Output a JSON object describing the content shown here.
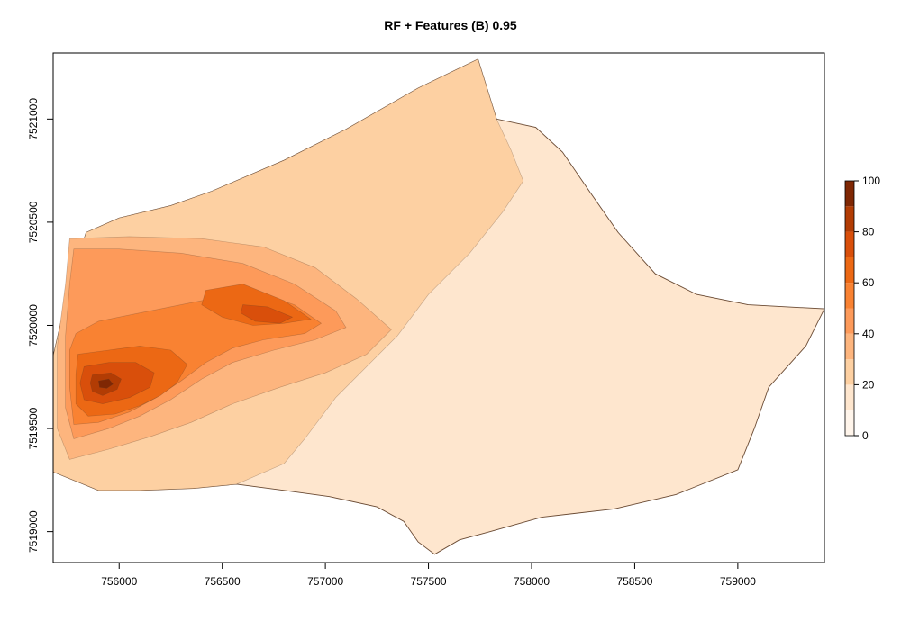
{
  "chart_data": {
    "type": "heatmap",
    "title": "RF + Features (B) 0.95",
    "xlabel": "",
    "ylabel": "",
    "xlim": [
      755680,
      759420
    ],
    "ylim": [
      7518850,
      7521320
    ],
    "x_ticks": [
      756000,
      756500,
      757000,
      757500,
      758000,
      758500,
      759000
    ],
    "y_ticks": [
      7519000,
      7519500,
      7520000,
      7520500,
      7521000
    ],
    "grid": false,
    "legend_position": "right",
    "colorbar": {
      "min": 0,
      "max": 100,
      "ticks": [
        0,
        20,
        40,
        60,
        80,
        100
      ],
      "levels": [
        {
          "from": 0,
          "to": 10,
          "color": "#fff5eb"
        },
        {
          "from": 10,
          "to": 20,
          "color": "#fee6ce"
        },
        {
          "from": 20,
          "to": 30,
          "color": "#fdd0a2"
        },
        {
          "from": 30,
          "to": 40,
          "color": "#fdb57e"
        },
        {
          "from": 40,
          "to": 50,
          "color": "#fd9a5a"
        },
        {
          "from": 50,
          "to": 60,
          "color": "#f98232"
        },
        {
          "from": 60,
          "to": 70,
          "color": "#ec6814"
        },
        {
          "from": 70,
          "to": 80,
          "color": "#d94f0b"
        },
        {
          "from": 80,
          "to": 90,
          "color": "#b23c04"
        },
        {
          "from": 90,
          "to": 100,
          "color": "#7f2704"
        }
      ]
    },
    "regions": [
      {
        "level": 10,
        "points": [
          [
            757740,
            7521290
          ],
          [
            757830,
            7521000
          ],
          [
            758020,
            7520960
          ],
          [
            758150,
            7520840
          ],
          [
            758280,
            7520650
          ],
          [
            758420,
            7520450
          ],
          [
            758600,
            7520250
          ],
          [
            758800,
            7520150
          ],
          [
            759050,
            7520100
          ],
          [
            759420,
            7520080
          ],
          [
            759330,
            7519900
          ],
          [
            759150,
            7519700
          ],
          [
            759080,
            7519500
          ],
          [
            759000,
            7519300
          ],
          [
            758700,
            7519180
          ],
          [
            758400,
            7519110
          ],
          [
            758050,
            7519070
          ],
          [
            757800,
            7519000
          ],
          [
            757650,
            7518960
          ],
          [
            757530,
            7518890
          ],
          [
            757450,
            7518950
          ],
          [
            757380,
            7519050
          ],
          [
            757250,
            7519120
          ],
          [
            757020,
            7519170
          ],
          [
            756800,
            7519200
          ],
          [
            756570,
            7519230
          ],
          [
            756360,
            7519210
          ],
          [
            756100,
            7519200
          ],
          [
            755900,
            7519200
          ],
          [
            755680,
            7519290
          ],
          [
            755680,
            7519850
          ],
          [
            755760,
            7520200
          ],
          [
            755840,
            7520450
          ],
          [
            756000,
            7520520
          ],
          [
            756250,
            7520580
          ],
          [
            756450,
            7520650
          ],
          [
            756800,
            7520800
          ],
          [
            757100,
            7520950
          ],
          [
            757450,
            7521150
          ],
          [
            757740,
            7521290
          ]
        ]
      },
      {
        "level": 20,
        "points": [
          [
            757740,
            7521290
          ],
          [
            757830,
            7521000
          ],
          [
            757900,
            7520850
          ],
          [
            757960,
            7520700
          ],
          [
            757860,
            7520550
          ],
          [
            757700,
            7520350
          ],
          [
            757500,
            7520150
          ],
          [
            757350,
            7519950
          ],
          [
            757200,
            7519800
          ],
          [
            757050,
            7519650
          ],
          [
            756900,
            7519450
          ],
          [
            756800,
            7519330
          ],
          [
            756570,
            7519230
          ],
          [
            756360,
            7519210
          ],
          [
            756100,
            7519200
          ],
          [
            755900,
            7519200
          ],
          [
            755680,
            7519290
          ],
          [
            755680,
            7519850
          ],
          [
            755760,
            7520200
          ],
          [
            755840,
            7520450
          ],
          [
            756000,
            7520520
          ],
          [
            756250,
            7520580
          ],
          [
            756450,
            7520650
          ],
          [
            756800,
            7520800
          ],
          [
            757100,
            7520950
          ],
          [
            757450,
            7521150
          ],
          [
            757740,
            7521290
          ]
        ]
      },
      {
        "level": 30,
        "points": [
          [
            755760,
            7520420
          ],
          [
            756050,
            7520430
          ],
          [
            756400,
            7520420
          ],
          [
            756700,
            7520380
          ],
          [
            756950,
            7520280
          ],
          [
            757150,
            7520130
          ],
          [
            757320,
            7519980
          ],
          [
            757200,
            7519860
          ],
          [
            757000,
            7519770
          ],
          [
            756780,
            7519700
          ],
          [
            756550,
            7519620
          ],
          [
            756350,
            7519530
          ],
          [
            756150,
            7519460
          ],
          [
            755950,
            7519400
          ],
          [
            755760,
            7519350
          ],
          [
            755700,
            7519500
          ],
          [
            755700,
            7519900
          ],
          [
            755740,
            7520200
          ]
        ]
      },
      {
        "level": 40,
        "points": [
          [
            755780,
            7520370
          ],
          [
            756000,
            7520370
          ],
          [
            756300,
            7520350
          ],
          [
            756600,
            7520300
          ],
          [
            756850,
            7520200
          ],
          [
            757050,
            7520070
          ],
          [
            757100,
            7519990
          ],
          [
            756950,
            7519930
          ],
          [
            756750,
            7519880
          ],
          [
            756550,
            7519820
          ],
          [
            756400,
            7519740
          ],
          [
            756250,
            7519640
          ],
          [
            756100,
            7519560
          ],
          [
            755950,
            7519500
          ],
          [
            755780,
            7519450
          ],
          [
            755740,
            7519600
          ],
          [
            755740,
            7519950
          ],
          [
            755760,
            7520200
          ]
        ]
      },
      {
        "level": 50,
        "points": [
          [
            755790,
            7519960
          ],
          [
            755900,
            7520020
          ],
          [
            756100,
            7520060
          ],
          [
            756300,
            7520100
          ],
          [
            756500,
            7520140
          ],
          [
            756700,
            7520150
          ],
          [
            756850,
            7520100
          ],
          [
            756980,
            7520010
          ],
          [
            756900,
            7519960
          ],
          [
            756700,
            7519930
          ],
          [
            756550,
            7519890
          ],
          [
            756420,
            7519820
          ],
          [
            756300,
            7519730
          ],
          [
            756180,
            7519650
          ],
          [
            756050,
            7519580
          ],
          [
            755900,
            7519530
          ],
          [
            755780,
            7519520
          ],
          [
            755760,
            7519700
          ],
          [
            755760,
            7519880
          ]
        ]
      },
      {
        "level": 60,
        "points": [
          [
            755800,
            7519860
          ],
          [
            755950,
            7519880
          ],
          [
            756100,
            7519900
          ],
          [
            756250,
            7519880
          ],
          [
            756330,
            7519810
          ],
          [
            756280,
            7519720
          ],
          [
            756200,
            7519660
          ],
          [
            756100,
            7519610
          ],
          [
            755980,
            7519570
          ],
          [
            755850,
            7519560
          ],
          [
            755790,
            7519620
          ],
          [
            755790,
            7519760
          ]
        ]
      },
      {
        "level": 60,
        "points": [
          [
            756420,
            7520170
          ],
          [
            756600,
            7520200
          ],
          [
            756800,
            7520120
          ],
          [
            756930,
            7520030
          ],
          [
            756800,
            7520010
          ],
          [
            756650,
            7520000
          ],
          [
            756500,
            7520040
          ],
          [
            756400,
            7520100
          ]
        ]
      },
      {
        "level": 70,
        "points": [
          [
            755830,
            7519800
          ],
          [
            755950,
            7519820
          ],
          [
            756080,
            7519820
          ],
          [
            756170,
            7519770
          ],
          [
            756150,
            7519700
          ],
          [
            756050,
            7519650
          ],
          [
            755920,
            7519620
          ],
          [
            755830,
            7519640
          ],
          [
            755810,
            7519720
          ]
        ]
      },
      {
        "level": 70,
        "points": [
          [
            756600,
            7520100
          ],
          [
            756720,
            7520090
          ],
          [
            756840,
            7520040
          ],
          [
            756780,
            7520010
          ],
          [
            756660,
            7520020
          ],
          [
            756590,
            7520060
          ]
        ]
      },
      {
        "level": 80,
        "points": [
          [
            755870,
            7519760
          ],
          [
            755960,
            7519770
          ],
          [
            756010,
            7519740
          ],
          [
            755990,
            7519690
          ],
          [
            755920,
            7519660
          ],
          [
            755870,
            7519680
          ],
          [
            755860,
            7519720
          ]
        ]
      },
      {
        "level": 90,
        "points": [
          [
            755900,
            7519730
          ],
          [
            755950,
            7519740
          ],
          [
            755970,
            7519715
          ],
          [
            755940,
            7519695
          ],
          [
            755905,
            7519700
          ]
        ]
      }
    ]
  }
}
